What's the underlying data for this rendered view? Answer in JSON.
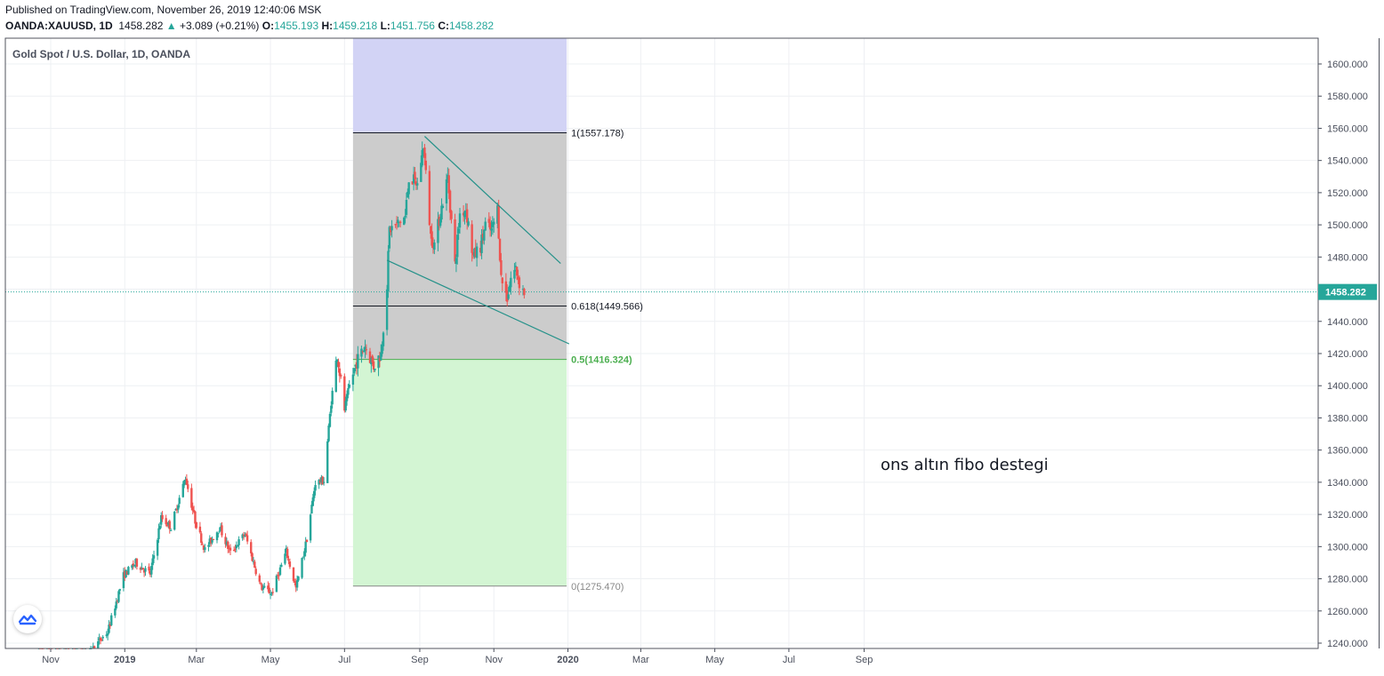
{
  "header": {
    "published": "Published on TradingView.com, November 26, 2019 12:40:06 MSK",
    "symbol": "OANDA:XAUUSD, 1D",
    "last": "1458.282",
    "change_arrow": "▲",
    "change": "+3.089 (+0.21%)",
    "o_label": "O:",
    "o_value": "1455.193",
    "h_label": "H:",
    "h_value": "1459.218",
    "l_label": "L:",
    "l_value": "1451.756",
    "c_label": "C:",
    "c_value": "1458.282"
  },
  "colors": {
    "up": "#26a69a",
    "down": "#ef5350",
    "grid": "#eef0f3",
    "fib_top_zone": "#d2d3f5",
    "fib_mid_zone": "#cccccc",
    "fib_bottom_zone": "#d3f5d3",
    "fib_05": "#4caf50",
    "trendline": "#26928a",
    "price_line": "#26a69a"
  },
  "logo_icon": "tradingview-cloud-icon",
  "chart_data": {
    "type": "candlestick",
    "title": "Gold Spot / U.S. Dollar, 1D, OANDA",
    "y_axis_labels": [
      "1240.000",
      "1260.000",
      "1280.000",
      "1300.000",
      "1320.000",
      "1340.000",
      "1360.000",
      "1380.000",
      "1400.000",
      "1420.000",
      "1440.000",
      "1460.000",
      "1480.000",
      "1500.000",
      "1520.000",
      "1540.000",
      "1560.000",
      "1580.000",
      "1600.000"
    ],
    "ylim": [
      1240,
      1616
    ],
    "x_axis_labels": [
      "Nov",
      "2019",
      "Mar",
      "May",
      "Jul",
      "Sep",
      "Nov",
      "2020",
      "Mar",
      "May",
      "Jul",
      "Sep"
    ],
    "x_axis_bold": [
      "2019",
      "2020"
    ],
    "x_range": [
      "2018-10-22",
      "2020-10-08"
    ],
    "last_price": 1458.282,
    "last_price_label": "1458.282",
    "fibonacci": {
      "start_date": "2019-07-08",
      "end_date": "2019-12-31",
      "levels": [
        {
          "ratio": "1",
          "price": 1557.178,
          "label": "1(1557.178)"
        },
        {
          "ratio": "0.618",
          "price": 1449.566,
          "label": "0.618(1449.566)"
        },
        {
          "ratio": "0.5",
          "price": 1416.324,
          "label": "0.5(1416.324)"
        },
        {
          "ratio": "0",
          "price": 1275.47,
          "label": "0(1275.470)"
        }
      ],
      "zone_top_price": 1616
    },
    "trendlines": [
      {
        "from": [
          "2019-09-05",
          1555
        ],
        "to": [
          "2019-12-26",
          1476
        ]
      },
      {
        "from": [
          "2019-08-05",
          1478
        ],
        "to": [
          "2020-01-02",
          1426
        ]
      }
    ],
    "annotation": "ons altın fibo destegi",
    "close_path": [
      [
        "2018-10-22",
        1230
      ],
      [
        "2018-11-10",
        1222
      ],
      [
        "2018-11-28",
        1224
      ],
      [
        "2018-12-05",
        1236
      ],
      [
        "2018-12-18",
        1247
      ],
      [
        "2018-12-31",
        1282
      ],
      [
        "2019-01-10",
        1290
      ],
      [
        "2019-01-22",
        1283
      ],
      [
        "2019-01-31",
        1318
      ],
      [
        "2019-02-08",
        1312
      ],
      [
        "2019-02-20",
        1343
      ],
      [
        "2019-02-28",
        1316
      ],
      [
        "2019-03-08",
        1298
      ],
      [
        "2019-03-20",
        1312
      ],
      [
        "2019-03-29",
        1296
      ],
      [
        "2019-04-10",
        1308
      ],
      [
        "2019-04-23",
        1275
      ],
      [
        "2019-05-02",
        1271
      ],
      [
        "2019-05-14",
        1297
      ],
      [
        "2019-05-22",
        1274
      ],
      [
        "2019-05-31",
        1305
      ],
      [
        "2019-06-07",
        1340
      ],
      [
        "2019-06-14",
        1341
      ],
      [
        "2019-06-20",
        1390
      ],
      [
        "2019-06-25",
        1420
      ],
      [
        "2019-07-01",
        1385
      ],
      [
        "2019-07-05",
        1400
      ],
      [
        "2019-07-11",
        1415
      ],
      [
        "2019-07-18",
        1425
      ],
      [
        "2019-07-25",
        1412
      ],
      [
        "2019-07-31",
        1420
      ],
      [
        "2019-08-05",
        1463
      ],
      [
        "2019-08-07",
        1497
      ],
      [
        "2019-08-13",
        1500
      ],
      [
        "2019-08-20",
        1505
      ],
      [
        "2019-08-23",
        1530
      ],
      [
        "2019-08-30",
        1525
      ],
      [
        "2019-09-04",
        1550
      ],
      [
        "2019-09-10",
        1493
      ],
      [
        "2019-09-13",
        1488
      ],
      [
        "2019-09-24",
        1530
      ],
      [
        "2019-09-30",
        1475
      ],
      [
        "2019-10-04",
        1507
      ],
      [
        "2019-10-09",
        1510
      ],
      [
        "2019-10-15",
        1480
      ],
      [
        "2019-10-21",
        1487
      ],
      [
        "2019-10-25",
        1500
      ],
      [
        "2019-10-30",
        1496
      ],
      [
        "2019-11-04",
        1510
      ],
      [
        "2019-11-07",
        1467
      ],
      [
        "2019-11-12",
        1455
      ],
      [
        "2019-11-15",
        1467
      ],
      [
        "2019-11-19",
        1473
      ],
      [
        "2019-11-22",
        1464
      ],
      [
        "2019-11-26",
        1458
      ]
    ]
  }
}
